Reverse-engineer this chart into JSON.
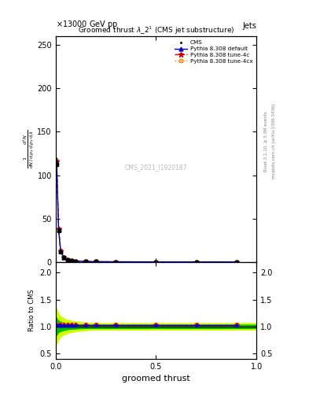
{
  "title": "Groomed thrust $\\lambda\\_2^1$ (CMS jet substructure)",
  "header_left": "13000 GeV pp",
  "header_right": "Jets",
  "watermark": "CMS_2021_I1920187",
  "right_label_top": "Rivet 3.1.10, ≥ 3.3M events",
  "right_label_bottom": "mcplots.cern.ch [arXiv:1306.3436]",
  "xlabel": "groomed thrust",
  "ylabel_ratio": "Ratio to CMS",
  "ylim_main": [
    0,
    260
  ],
  "ylim_ratio": [
    0.4,
    2.2
  ],
  "xlim": [
    0,
    1
  ],
  "yticks_main": [
    0,
    50,
    100,
    150,
    200,
    250
  ],
  "yticks_ratio": [
    0.5,
    1.0,
    1.5,
    2.0
  ],
  "xticks": [
    0.0,
    0.5,
    1.0
  ],
  "x_data": [
    0.005,
    0.015,
    0.025,
    0.04,
    0.06,
    0.08,
    0.1,
    0.15,
    0.2,
    0.3,
    0.5,
    0.7,
    0.9
  ],
  "cms_y": [
    112,
    36,
    12,
    5,
    2.5,
    1.5,
    1.0,
    0.5,
    0.3,
    0.2,
    0.05,
    0.02,
    0.01
  ],
  "cms_yerr": [
    8,
    3,
    1.0,
    0.5,
    0.25,
    0.15,
    0.1,
    0.05,
    0.03,
    0.02,
    0.006,
    0.003,
    0.002
  ],
  "pythia_default_y": [
    115,
    37,
    12.5,
    5.2,
    2.6,
    1.6,
    1.05,
    0.52,
    0.31,
    0.21,
    0.052,
    0.021,
    0.011
  ],
  "pythia_4c_y": [
    116,
    37.5,
    12.8,
    5.3,
    2.65,
    1.62,
    1.06,
    0.53,
    0.32,
    0.21,
    0.053,
    0.021,
    0.011
  ],
  "pythia_4cx_y": [
    117,
    38,
    13,
    5.4,
    2.7,
    1.65,
    1.08,
    0.54,
    0.33,
    0.22,
    0.054,
    0.022,
    0.012
  ],
  "ratio_default": [
    1.02,
    1.02,
    1.02,
    1.02,
    1.02,
    1.02,
    1.02,
    1.02,
    1.02,
    1.02,
    1.02,
    1.02,
    1.02
  ],
  "ratio_4c": [
    1.02,
    1.02,
    1.02,
    1.02,
    1.02,
    1.02,
    1.02,
    1.02,
    1.02,
    1.02,
    1.02,
    1.02,
    1.02
  ],
  "ratio_4cx": [
    1.04,
    1.04,
    1.04,
    1.04,
    1.04,
    1.04,
    1.04,
    1.04,
    1.04,
    1.04,
    1.04,
    1.04,
    1.04
  ],
  "band_x": [
    0.0,
    0.01,
    0.02,
    0.04,
    0.06,
    0.1,
    0.15,
    0.2,
    0.3,
    0.5,
    0.7,
    0.9,
    1.0
  ],
  "outer_lo": [
    0.65,
    0.72,
    0.8,
    0.85,
    0.88,
    0.91,
    0.93,
    0.94,
    0.94,
    0.94,
    0.94,
    0.94,
    0.94
  ],
  "outer_hi": [
    1.35,
    1.28,
    1.2,
    1.15,
    1.12,
    1.09,
    1.07,
    1.06,
    1.06,
    1.06,
    1.06,
    1.06,
    1.06
  ],
  "inner_lo": [
    0.82,
    0.88,
    0.91,
    0.93,
    0.95,
    0.96,
    0.97,
    0.97,
    0.97,
    0.97,
    0.97,
    0.97,
    0.97
  ],
  "inner_hi": [
    1.18,
    1.12,
    1.09,
    1.07,
    1.05,
    1.04,
    1.03,
    1.03,
    1.03,
    1.03,
    1.03,
    1.03,
    1.03
  ],
  "color_cms": "#000000",
  "color_default": "#0000CC",
  "color_4c": "#CC0000",
  "color_4cx": "#FF8800",
  "color_inner_band": "#00BB00",
  "color_outer_band": "#CCFF00",
  "bg_color": "#FFFFFF"
}
